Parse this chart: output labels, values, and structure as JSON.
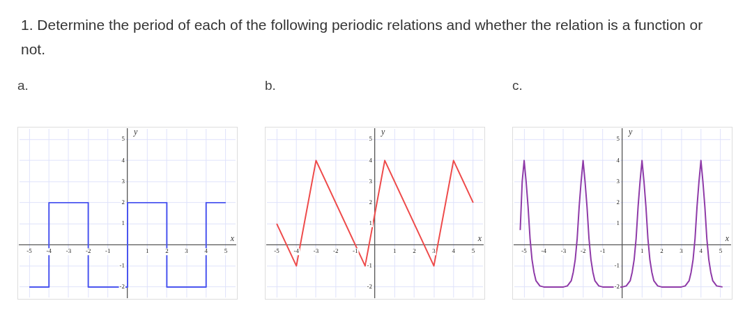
{
  "chart_data": [
    {
      "type": "line",
      "title": "a.",
      "annotations": [
        "1. Determine the period of each of the following periodic relations and whether the relation is a function or not."
      ],
      "xlabel": "x",
      "ylabel": "y",
      "xlim": [
        -5.5,
        5.5
      ],
      "ylim": [
        -2.5,
        5.5
      ],
      "xticks": [
        -5,
        -4,
        -3,
        -2,
        -1,
        1,
        2,
        3,
        4,
        5
      ],
      "yticks": [
        -2,
        -1,
        1,
        2,
        3,
        4,
        5
      ],
      "grid": true,
      "legend": false,
      "series": [
        {
          "color": "#4a55ef",
          "x": [
            -5,
            -4,
            -4,
            -2,
            -2,
            0,
            0,
            2,
            2,
            4,
            4,
            5
          ],
          "values": [
            -2,
            -2,
            2,
            2,
            -2,
            -2,
            2,
            2,
            -2,
            -2,
            2,
            2
          ]
        }
      ]
    },
    {
      "type": "line",
      "title": "b.",
      "xlabel": "x",
      "ylabel": "y",
      "xlim": [
        -5.5,
        5.5
      ],
      "ylim": [
        -2.5,
        5.5
      ],
      "xticks": [
        -5,
        -4,
        -3,
        -2,
        -1,
        1,
        2,
        3,
        4,
        5
      ],
      "yticks": [
        -2,
        -1,
        1,
        2,
        3,
        4,
        5
      ],
      "grid": true,
      "legend": false,
      "series": [
        {
          "color": "#ee4a4a",
          "x": [
            -5,
            -4,
            -3,
            -0.5,
            0.5,
            3,
            4,
            5
          ],
          "values": [
            1,
            -1,
            4,
            -1,
            4,
            -1,
            4,
            2
          ]
        }
      ]
    },
    {
      "type": "line",
      "title": "c.",
      "xlabel": "x",
      "ylabel": "y",
      "xlim": [
        -5.5,
        5.5
      ],
      "ylim": [
        -2.5,
        5.5
      ],
      "xticks": [
        -5,
        -4,
        -3,
        -2,
        -1,
        1,
        2,
        3,
        4,
        5
      ],
      "yticks": [
        -2,
        -1,
        1,
        2,
        3,
        4,
        5
      ],
      "grid": true,
      "legend": false,
      "series": [
        {
          "color": "#8e3aa8",
          "x": [
            -5.2,
            -5.1,
            -5,
            -4.9,
            -4.8,
            -4.7,
            -4.6,
            -4.5,
            -4.4,
            -4.2,
            -4,
            -3.5,
            -3,
            -2.8,
            -2.6,
            -2.5,
            -2.4,
            -2.3,
            -2.2,
            -2.1,
            -2,
            -1.9,
            -1.8,
            -1.7,
            -1.6,
            -1.5,
            -1.4,
            -1.2,
            -1,
            -0.5,
            0,
            0.2,
            0.4,
            0.5,
            0.6,
            0.7,
            0.8,
            0.9,
            1,
            1.1,
            1.2,
            1.3,
            1.4,
            1.5,
            1.6,
            1.8,
            2,
            2.5,
            3,
            3.2,
            3.4,
            3.5,
            3.6,
            3.7,
            3.8,
            3.9,
            4,
            4.1,
            4.2,
            4.3,
            4.4,
            4.5,
            4.6,
            4.8,
            5.1
          ],
          "values": [
            0.7,
            3,
            4,
            3,
            1.8,
            0.3,
            -0.7,
            -1.3,
            -1.7,
            -1.95,
            -2,
            -2,
            -2,
            -1.95,
            -1.7,
            -1.3,
            -0.7,
            0.3,
            1.8,
            3,
            4,
            3,
            1.8,
            0.3,
            -0.7,
            -1.3,
            -1.7,
            -1.95,
            -2,
            -2,
            -2,
            -1.95,
            -1.7,
            -1.3,
            -0.7,
            0.3,
            1.8,
            3,
            4,
            3,
            1.8,
            0.3,
            -0.7,
            -1.3,
            -1.7,
            -1.95,
            -2,
            -2,
            -2,
            -1.95,
            -1.7,
            -1.3,
            -0.7,
            0.3,
            1.8,
            3,
            4,
            3,
            1.8,
            0.3,
            -0.7,
            -1.3,
            -1.7,
            -1.95,
            -2
          ]
        }
      ]
    }
  ]
}
